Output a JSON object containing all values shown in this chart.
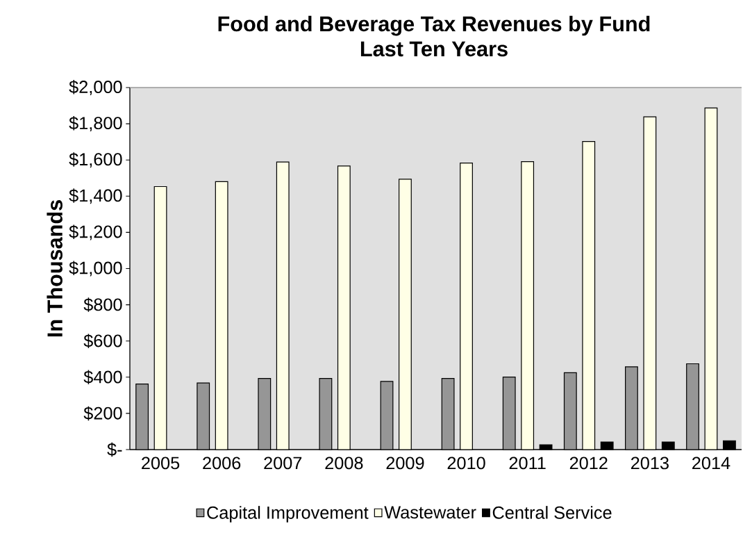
{
  "chart_data": {
    "type": "bar",
    "title": "Food and Beverage Tax Revenues by Fund",
    "subtitle": "Last Ten Years",
    "ylabel": "In Thousands",
    "categories": [
      "2005",
      "2006",
      "2007",
      "2008",
      "2009",
      "2010",
      "2011",
      "2012",
      "2013",
      "2014"
    ],
    "series": [
      {
        "name": "Capital Improvement",
        "color": "#969696",
        "values": [
          362,
          368,
          393,
          393,
          377,
          393,
          401,
          425,
          457,
          474
        ]
      },
      {
        "name": "Wastewater",
        "color": "#ffffe6",
        "values": [
          1453,
          1480,
          1589,
          1567,
          1494,
          1583,
          1591,
          1702,
          1838,
          1887
        ]
      },
      {
        "name": "Central Service",
        "color": "#000000",
        "values": [
          null,
          null,
          null,
          null,
          null,
          null,
          26,
          42,
          42,
          49
        ]
      }
    ],
    "ylim": [
      0,
      2000
    ],
    "yticks": [
      {
        "value": 0,
        "label": "$-"
      },
      {
        "value": 200,
        "label": "$200"
      },
      {
        "value": 400,
        "label": "$400"
      },
      {
        "value": 600,
        "label": "$600"
      },
      {
        "value": 800,
        "label": "$800"
      },
      {
        "value": 1000,
        "label": "$1,000"
      },
      {
        "value": 1200,
        "label": "$1,200"
      },
      {
        "value": 1400,
        "label": "$1,400"
      },
      {
        "value": 1600,
        "label": "$1,600"
      },
      {
        "value": 1800,
        "label": "$1,800"
      },
      {
        "value": 2000,
        "label": "$2,000"
      }
    ],
    "grid": false,
    "legend": "bottom"
  }
}
